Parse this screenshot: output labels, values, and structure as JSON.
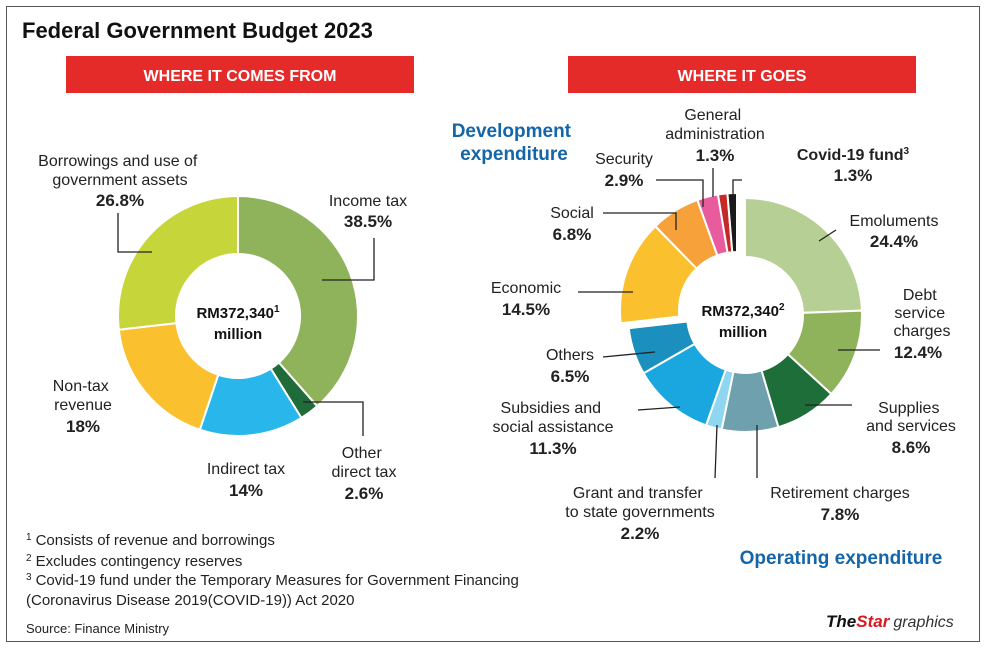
{
  "chart_data": {
    "type": "pie",
    "title": "Federal Government Budget 2023",
    "charts": [
      {
        "id": "comes",
        "header": "WHERE IT COMES FROM",
        "center_amount": "RM372,340",
        "center_sup": "1",
        "center_unit": "million",
        "slices": [
          {
            "name": "Income tax",
            "label": [
              "Income tax"
            ],
            "value": 38.5,
            "value_label": "38.5%",
            "color": "#8fb35a"
          },
          {
            "name": "Other direct tax",
            "label": [
              "Other",
              "direct tax"
            ],
            "value": 2.6,
            "value_label": "2.6%",
            "color": "#1f6b3a"
          },
          {
            "name": "Indirect tax",
            "label": [
              "Indirect tax"
            ],
            "value": 14,
            "value_label": "14%",
            "color": "#29b6ea"
          },
          {
            "name": "Non-tax revenue",
            "label": [
              "Non-tax",
              "revenue"
            ],
            "value": 18,
            "value_label": "18%",
            "color": "#fbc02d"
          },
          {
            "name": "Borrowings and use of government assets",
            "label": [
              "Borrowings and use of",
              "government assets"
            ],
            "value": 26.8,
            "value_label": "26.8%",
            "color": "#c6d63a"
          }
        ]
      },
      {
        "id": "goes",
        "header": "WHERE IT GOES",
        "center_amount": "RM372,340",
        "center_sup": "2",
        "center_unit": "million",
        "groups": {
          "development": "Development expenditure",
          "operating": "Operating expenditure"
        },
        "slices": [
          {
            "name": "Emoluments",
            "label": [
              "Emoluments"
            ],
            "value": 24.4,
            "value_label": "24.4%",
            "color": "#b5cf94",
            "group": "operating"
          },
          {
            "name": "Debt service charges",
            "label": [
              "Debt",
              "service",
              "charges"
            ],
            "value": 12.4,
            "value_label": "12.4%",
            "color": "#8fb35a",
            "group": "operating"
          },
          {
            "name": "Supplies and services",
            "label": [
              "Supplies",
              "and services"
            ],
            "value": 8.6,
            "value_label": "8.6%",
            "color": "#1e6e3a",
            "group": "operating"
          },
          {
            "name": "Retirement charges",
            "label": [
              "Retirement charges"
            ],
            "value": 7.8,
            "value_label": "7.8%",
            "color": "#6fa0ad",
            "group": "operating"
          },
          {
            "name": "Grant and transfer to state governments",
            "label": [
              "Grant and transfer",
              "to state governments"
            ],
            "value": 2.2,
            "value_label": "2.2%",
            "color": "#8fd6f0",
            "group": "operating"
          },
          {
            "name": "Subsidies and social assistance",
            "label": [
              "Subsidies and",
              "social assistance"
            ],
            "value": 11.3,
            "value_label": "11.3%",
            "color": "#1aa7df",
            "group": "operating"
          },
          {
            "name": "Others",
            "label": [
              "Others"
            ],
            "value": 6.5,
            "value_label": "6.5%",
            "color": "#1b8fbd",
            "group": "operating"
          },
          {
            "name": "Economic",
            "label": [
              "Economic"
            ],
            "value": 14.5,
            "value_label": "14.5%",
            "color": "#fbc02d",
            "group": "development"
          },
          {
            "name": "Social",
            "label": [
              "Social"
            ],
            "value": 6.8,
            "value_label": "6.8%",
            "color": "#f7a13a",
            "group": "development"
          },
          {
            "name": "Security",
            "label": [
              "Security"
            ],
            "value": 2.9,
            "value_label": "2.9%",
            "color": "#e85c9e",
            "group": "development"
          },
          {
            "name": "General administration",
            "label": [
              "General",
              "administration"
            ],
            "value": 1.3,
            "value_label": "1.3%",
            "color": "#c62828",
            "group": "development"
          },
          {
            "name": "Covid-19 fund",
            "label": [
              "Covid-19 fund"
            ],
            "label_sup": "3",
            "value": 1.3,
            "value_label": "1.3%",
            "color": "#1a1a1a",
            "group": "development"
          }
        ]
      }
    ]
  },
  "footnotes": [
    {
      "mark": "1",
      "text": "Consists of revenue and borrowings"
    },
    {
      "mark": "2",
      "text": "Excludes contingency reserves"
    },
    {
      "mark": "3",
      "text": "Covid-19 fund under the Temporary Measures for Government Financing"
    },
    {
      "mark": "",
      "text": "(Coronavirus Disease 2019(COVID-19)) Act 2020"
    }
  ],
  "source": "Source: Finance Ministry",
  "brand": {
    "the": "The",
    "star": "Star",
    "graphics": "graphics"
  },
  "colors": {
    "banner": "#e52a2a",
    "group_text": "#1565a9",
    "brand_red": "#d71920"
  }
}
